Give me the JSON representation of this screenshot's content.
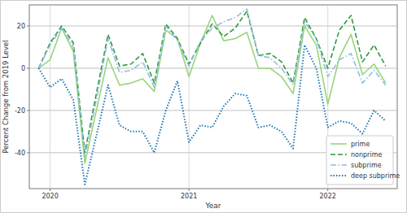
{
  "chart_data": {
    "type": "line",
    "x_label": "Year",
    "y_label": "Percent Change from 2019 Level",
    "x": [
      2019.917,
      2020.0,
      2020.083,
      2020.167,
      2020.25,
      2020.333,
      2020.417,
      2020.5,
      2020.583,
      2020.667,
      2020.75,
      2020.833,
      2020.917,
      2021.0,
      2021.083,
      2021.167,
      2021.25,
      2021.333,
      2021.417,
      2021.5,
      2021.583,
      2021.667,
      2021.75,
      2021.833,
      2021.917,
      2022.0,
      2022.083,
      2022.167,
      2022.25,
      2022.333,
      2022.417
    ],
    "series": [
      {
        "name": "prime",
        "color": "#98d47c",
        "line_style": "solid",
        "values": [
          0,
          4,
          19,
          8,
          -45,
          -20,
          5,
          -8,
          -7,
          -5,
          -11,
          18,
          14,
          -4,
          12,
          25,
          13,
          14,
          17,
          0,
          0,
          -4,
          -12,
          20,
          11,
          -17,
          5,
          16,
          -3,
          2,
          -7
        ]
      },
      {
        "name": "nonprime",
        "color": "#2e9a3c",
        "line_style": "dashed",
        "values": [
          0,
          12,
          20,
          12,
          -40,
          -12,
          16,
          1,
          2,
          7,
          -7,
          21,
          14,
          2,
          12,
          21,
          15,
          19,
          27,
          6,
          7,
          3,
          -7,
          24,
          14,
          0,
          18,
          25,
          3,
          11,
          1
        ]
      },
      {
        "name": "subprime",
        "color": "#8fbfe0",
        "line_style": "dashdot",
        "values": [
          0,
          11,
          19,
          10,
          -42,
          -15,
          14,
          -2,
          -1,
          3,
          -9,
          20,
          13,
          1,
          13,
          19,
          22,
          24,
          28,
          6,
          5,
          0,
          -8,
          22,
          14,
          -4,
          4,
          7,
          -7,
          -1,
          -8
        ]
      },
      {
        "name": "deep subprime",
        "color": "#1f77b4",
        "line_style": "dotted",
        "values": [
          0,
          -9,
          -5,
          -15,
          -55,
          -32,
          -8,
          -27,
          -30,
          -30,
          -40,
          -20,
          -6,
          -35,
          -27,
          -28,
          -18,
          -12,
          -13,
          -28,
          -27,
          -30,
          -38,
          11,
          0,
          -28,
          -25,
          -26,
          -31,
          -20,
          -25
        ]
      }
    ],
    "xlim": [
      2019.85,
      2022.5
    ],
    "xticks": [
      2020,
      2021,
      2022
    ],
    "ylim": [
      -57,
      30
    ],
    "yticks": [
      -40,
      -20,
      0,
      20
    ],
    "grid": true,
    "legend": "lower right"
  }
}
